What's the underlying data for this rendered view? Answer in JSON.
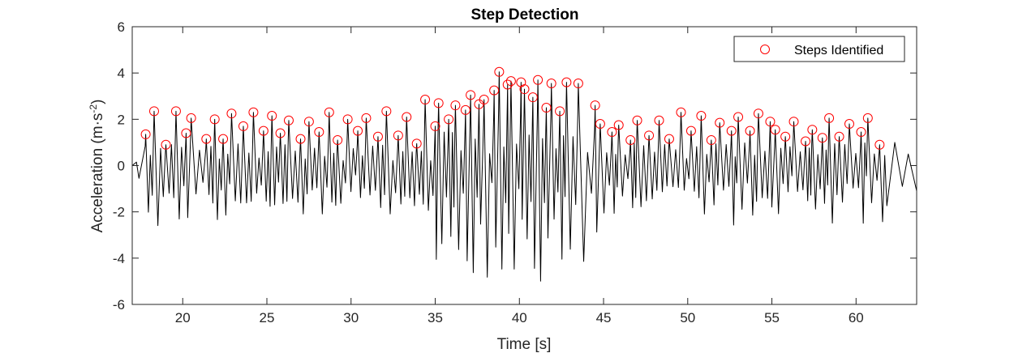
{
  "chart_data": {
    "type": "line",
    "title": "Step Detection",
    "xlabel": "Time [s]",
    "ylabel_main": "Acceleration (m·s",
    "ylabel_sup": "-2",
    "ylabel_tail": ")",
    "xlim": [
      17,
      63.6
    ],
    "ylim": [
      -6,
      6
    ],
    "xticks": [
      20,
      25,
      30,
      35,
      40,
      45,
      50,
      55,
      60
    ],
    "xtick_labels": [
      "20",
      "25",
      "30",
      "35",
      "40",
      "45",
      "50",
      "55",
      "60"
    ],
    "yticks": [
      -6,
      -4,
      -2,
      0,
      2,
      4,
      6
    ],
    "ytick_labels": [
      "-6",
      "-4",
      "-2",
      "0",
      "2",
      "4",
      "6"
    ],
    "grid": false,
    "legend_position": "top-right",
    "series": [
      {
        "name": "Steps Identified",
        "kind": "markers",
        "marker": "circle",
        "color": "#ff0000",
        "points": [
          [
            17.8,
            1.35
          ],
          [
            18.3,
            2.35
          ],
          [
            19.0,
            0.9
          ],
          [
            19.6,
            2.35
          ],
          [
            20.2,
            1.4
          ],
          [
            20.5,
            2.05
          ],
          [
            21.4,
            1.15
          ],
          [
            21.9,
            2.0
          ],
          [
            22.4,
            1.15
          ],
          [
            22.9,
            2.25
          ],
          [
            23.6,
            1.7
          ],
          [
            24.2,
            2.3
          ],
          [
            24.8,
            1.5
          ],
          [
            25.3,
            2.15
          ],
          [
            25.8,
            1.4
          ],
          [
            26.3,
            1.95
          ],
          [
            27.0,
            1.15
          ],
          [
            27.5,
            1.9
          ],
          [
            28.1,
            1.45
          ],
          [
            28.7,
            2.3
          ],
          [
            29.2,
            1.1
          ],
          [
            29.8,
            2.0
          ],
          [
            30.4,
            1.5
          ],
          [
            30.9,
            2.05
          ],
          [
            31.6,
            1.25
          ],
          [
            32.1,
            2.35
          ],
          [
            32.8,
            1.3
          ],
          [
            33.3,
            2.1
          ],
          [
            33.9,
            0.95
          ],
          [
            34.4,
            2.85
          ],
          [
            35.0,
            1.7
          ],
          [
            35.2,
            2.7
          ],
          [
            35.8,
            2.0
          ],
          [
            36.2,
            2.6
          ],
          [
            36.8,
            2.4
          ],
          [
            37.1,
            3.05
          ],
          [
            37.6,
            2.65
          ],
          [
            37.9,
            2.85
          ],
          [
            38.5,
            3.25
          ],
          [
            38.8,
            4.05
          ],
          [
            39.3,
            3.5
          ],
          [
            39.5,
            3.65
          ],
          [
            40.1,
            3.6
          ],
          [
            40.3,
            3.3
          ],
          [
            40.8,
            2.95
          ],
          [
            41.1,
            3.7
          ],
          [
            41.6,
            2.5
          ],
          [
            41.9,
            3.55
          ],
          [
            42.4,
            2.35
          ],
          [
            42.8,
            3.6
          ],
          [
            43.5,
            3.55
          ],
          [
            44.5,
            2.6
          ],
          [
            44.8,
            1.8
          ],
          [
            45.5,
            1.45
          ],
          [
            45.9,
            1.75
          ],
          [
            46.6,
            1.1
          ],
          [
            47.0,
            1.95
          ],
          [
            47.7,
            1.3
          ],
          [
            48.3,
            1.95
          ],
          [
            48.9,
            1.15
          ],
          [
            49.6,
            2.3
          ],
          [
            50.2,
            1.5
          ],
          [
            50.8,
            2.15
          ],
          [
            51.4,
            1.1
          ],
          [
            51.9,
            1.85
          ],
          [
            52.6,
            1.5
          ],
          [
            53.0,
            2.1
          ],
          [
            53.7,
            1.5
          ],
          [
            54.2,
            2.25
          ],
          [
            54.9,
            1.9
          ],
          [
            55.2,
            1.55
          ],
          [
            55.8,
            1.25
          ],
          [
            56.3,
            1.9
          ],
          [
            57.0,
            1.05
          ],
          [
            57.4,
            1.55
          ],
          [
            58.0,
            1.2
          ],
          [
            58.4,
            2.05
          ],
          [
            59.0,
            1.25
          ],
          [
            59.6,
            1.8
          ],
          [
            60.3,
            1.45
          ],
          [
            60.7,
            2.05
          ],
          [
            61.4,
            0.9
          ]
        ]
      }
    ],
    "signal": {
      "kind": "line",
      "color": "#000000",
      "description": "Accelerometer signal"
    }
  }
}
